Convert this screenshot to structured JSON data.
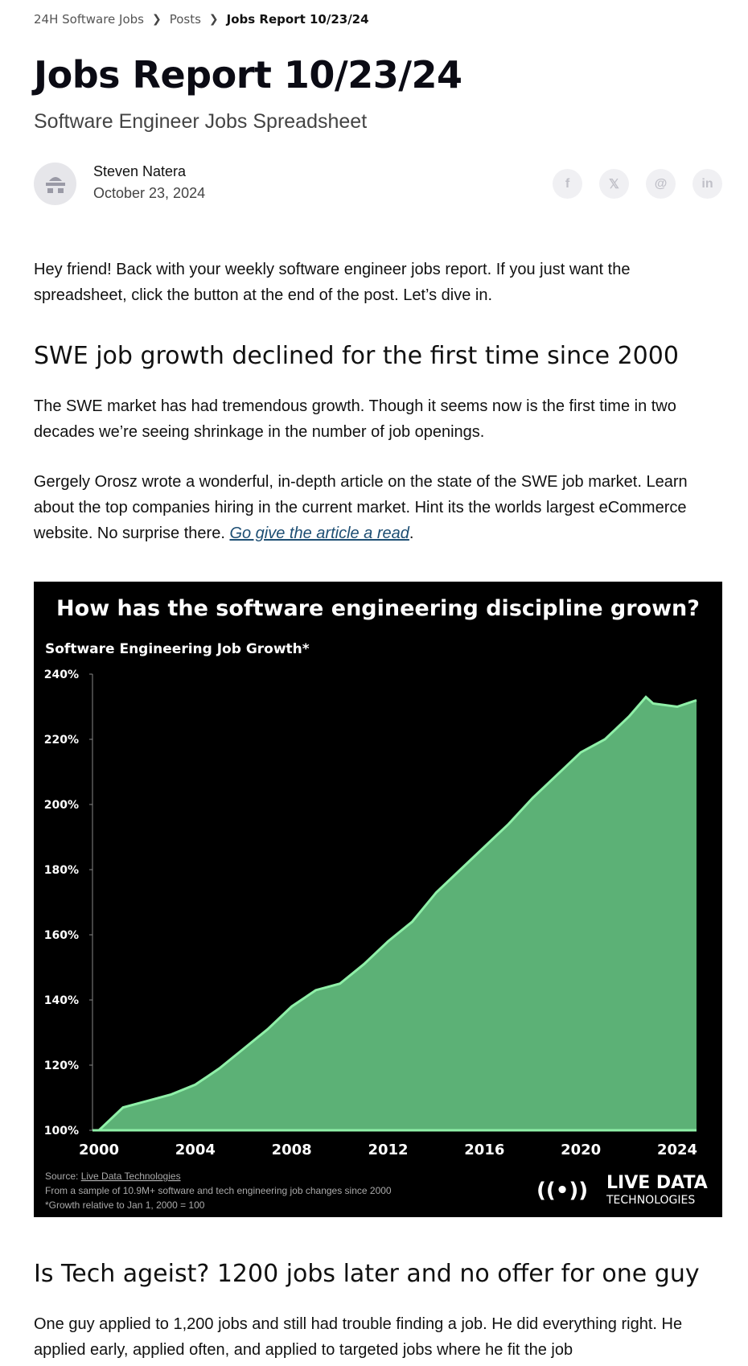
{
  "breadcrumb": {
    "items": [
      "24H Software Jobs",
      "Posts"
    ],
    "current": "Jobs Report 10/23/24"
  },
  "title": "Jobs Report 10/23/24",
  "subtitle": "Software Engineer Jobs Spreadsheet",
  "author": {
    "name": "Steven Natera",
    "date": "October 23, 2024"
  },
  "share": [
    {
      "icon": "facebook-icon",
      "glyph": "f"
    },
    {
      "icon": "x-icon",
      "glyph": "𝕏"
    },
    {
      "icon": "threads-icon",
      "glyph": "@"
    },
    {
      "icon": "linkedin-icon",
      "glyph": "in"
    }
  ],
  "intro": "Hey friend! Back with your weekly software engineer jobs report. If you just want the spreadsheet, click the button at the end of the post. Let’s dive in.",
  "section1": {
    "heading": "SWE job growth declined for the first time since 2000",
    "p1": "The SWE market has had tremendous growth. Though it seems now is the first time in two decades we’re seeing shrinkage in the number of job openings.",
    "p2": "Gergely Orosz wrote a wonderful, in-depth article on the state of the SWE job market. Learn about the top companies hiring in the current market. Hint its the worlds largest eCommerce website. No surprise there. ",
    "link": "Go give the article a read",
    "p2_end": "."
  },
  "chart_data": {
    "type": "area",
    "title": "How has the software engineering discipline grown?",
    "subtitle": "Software Engineering Job Growth*",
    "x": [
      2000,
      2001,
      2002,
      2003,
      2004,
      2005,
      2006,
      2007,
      2008,
      2009,
      2010,
      2011,
      2012,
      2013,
      2014,
      2015,
      2016,
      2017,
      2018,
      2019,
      2020,
      2021,
      2022,
      2022.7,
      2023,
      2024,
      2024.8
    ],
    "y": [
      100,
      107,
      109,
      111,
      114,
      119,
      125,
      131,
      138,
      143,
      145,
      151,
      158,
      164,
      173,
      180,
      187,
      194,
      202,
      209,
      216,
      220,
      227,
      233,
      231,
      230,
      232
    ],
    "xticks": [
      "2000",
      "2004",
      "2008",
      "2012",
      "2016",
      "2020",
      "2024"
    ],
    "yticks": [
      "100%",
      "120%",
      "140%",
      "160%",
      "180%",
      "200%",
      "220%",
      "240%"
    ],
    "xlim": [
      2000,
      2024.8
    ],
    "ylim": [
      100,
      240
    ],
    "grid": false,
    "colors": {
      "fill": "#5cb176",
      "line": "#8ff0a8",
      "background": "#000000"
    },
    "source_label": "Source: ",
    "source_link": "Live Data Technologies",
    "note1": "From a sample of 10.9M+ software and tech engineering job changes since 2000",
    "note2": "*Growth relative to Jan 1, 2000 = 100",
    "logo_line1": "LIVE DATA",
    "logo_line2": "TECHNOLOGIES"
  },
  "section2": {
    "heading": "Is Tech ageist? 1200 jobs later and no offer for one guy",
    "p1": "One guy applied to 1,200 jobs and still had trouble finding a job. He did everything right. He applied early, applied often, and applied to targeted jobs where he fit the job"
  }
}
